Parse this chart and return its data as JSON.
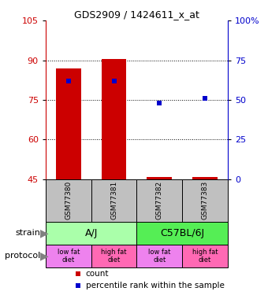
{
  "title": "GDS2909 / 1424611_x_at",
  "samples": [
    "GSM77380",
    "GSM77381",
    "GSM77382",
    "GSM77383"
  ],
  "ylim_left": [
    45,
    105
  ],
  "ylim_right": [
    0,
    100
  ],
  "yticks_left": [
    45,
    60,
    75,
    90,
    105
  ],
  "yticks_right": [
    0,
    25,
    50,
    75,
    100
  ],
  "bar_bottoms": [
    45,
    45,
    45,
    45
  ],
  "bar_tops": [
    87,
    90.5,
    45.8,
    45.8
  ],
  "blue_square_pct": [
    62,
    62,
    48,
    51
  ],
  "strain_labels": [
    "A/J",
    "C57BL/6J"
  ],
  "strain_colors": [
    "#aaffaa",
    "#55ee55"
  ],
  "protocol_labels": [
    "low fat\ndiet",
    "high fat\ndiet",
    "low fat\ndiet",
    "high fat\ndiet"
  ],
  "protocol_colors": [
    "#ee82ee",
    "#ff69b4",
    "#ee82ee",
    "#ff69b4"
  ],
  "bar_color": "#cc0000",
  "blue_color": "#0000cc",
  "axis_left_color": "#cc0000",
  "axis_right_color": "#0000cc",
  "sample_bg_color": "#c0c0c0",
  "legend_red_label": "count",
  "legend_blue_label": "percentile rank within the sample"
}
